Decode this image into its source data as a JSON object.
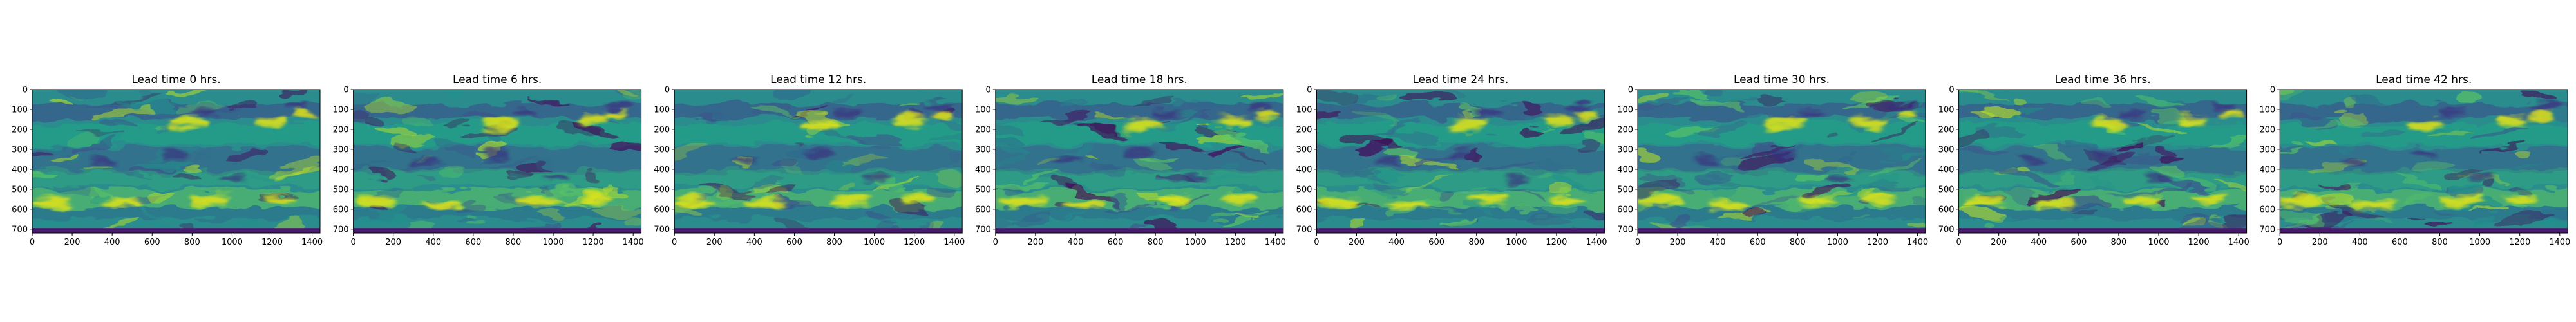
{
  "figure": {
    "panel_titles": [
      "Lead time 0 hrs.",
      "Lead time 6 hrs.",
      "Lead time 12 hrs.",
      "Lead time 18 hrs.",
      "Lead time 24 hrs.",
      "Lead time 30 hrs.",
      "Lead time 36 hrs.",
      "Lead time 42 hrs."
    ]
  },
  "chart_data": {
    "type": "heatmap",
    "colormap": "viridis",
    "panels": 8,
    "titles": [
      "Lead time 0 hrs.",
      "Lead time 6 hrs.",
      "Lead time 12 hrs.",
      "Lead time 18 hrs.",
      "Lead time 24 hrs.",
      "Lead time 30 hrs.",
      "Lead time 36 hrs.",
      "Lead time 42 hrs."
    ],
    "lead_times_hrs": [
      0,
      6,
      12,
      18,
      24,
      30,
      36,
      42
    ],
    "x_ticks": [
      "0",
      "200",
      "400",
      "600",
      "800",
      "1000",
      "1200",
      "1400"
    ],
    "y_ticks": [
      "0",
      "100",
      "200",
      "300",
      "400",
      "500",
      "600",
      "700"
    ],
    "xlim": [
      0,
      1440
    ],
    "ylim": [
      720,
      0
    ],
    "xlabel": "",
    "ylabel": "",
    "grid": false,
    "colors": {
      "background_field": "#2a8c8c",
      "dark_band": "#3b2f7f",
      "bright_jet": "#e3e419",
      "frame_bottom": "#481a6c"
    }
  }
}
